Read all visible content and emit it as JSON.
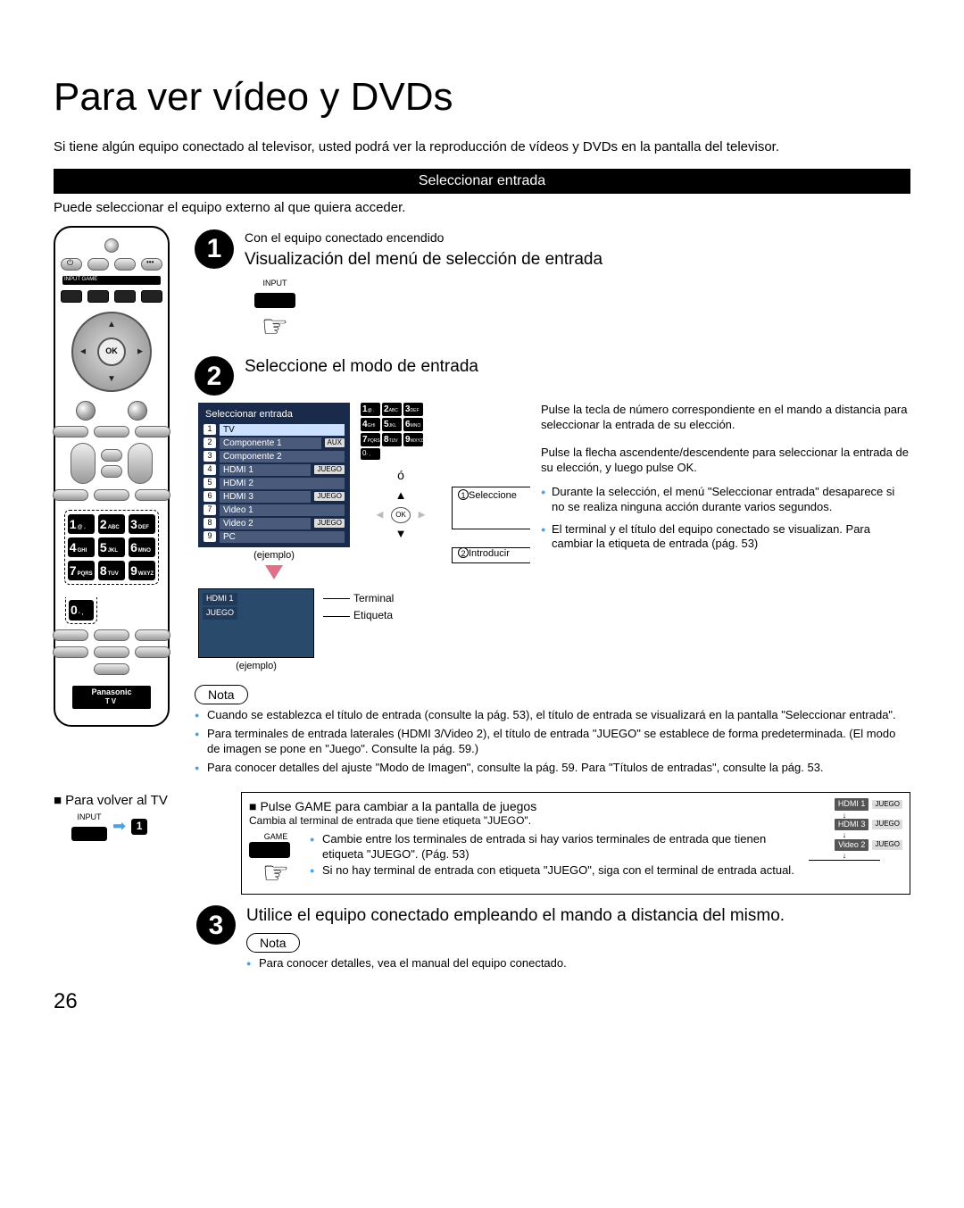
{
  "page_number": "26",
  "title": "Para ver vídeo y DVDs",
  "intro": "Si tiene algún equipo conectado al televisor, usted podrá ver la reproducción de vídeos y DVDs en la pantalla del televisor.",
  "section_header": "Seleccionar entrada",
  "subline": "Puede seleccionar el equipo externo al que quiera acceder.",
  "remote": {
    "ok": "OK",
    "input_game_label": "INPUT  GAME",
    "keys": [
      {
        "n": "1",
        "s": "@ ."
      },
      {
        "n": "2",
        "s": "ABC"
      },
      {
        "n": "3",
        "s": "DEF"
      },
      {
        "n": "4",
        "s": "GHI"
      },
      {
        "n": "5",
        "s": "JKL"
      },
      {
        "n": "6",
        "s": "MNO"
      },
      {
        "n": "7",
        "s": "PQRS"
      },
      {
        "n": "8",
        "s": "TUV"
      },
      {
        "n": "9",
        "s": "WXYZ"
      },
      {
        "n": "0",
        "s": "- ,"
      }
    ],
    "brand": "Panasonic",
    "brand_sub": "TV"
  },
  "step1": {
    "pre": "Con el equipo conectado encendido",
    "title": "Visualización del menú de selección de entrada",
    "btn_label": "INPUT"
  },
  "step2": {
    "title": "Seleccione el modo de entrada",
    "menu_title": "Seleccionar entrada",
    "rows": [
      {
        "n": "1",
        "lbl": "TV",
        "tag": ""
      },
      {
        "n": "2",
        "lbl": "Componente 1",
        "tag": "AUX"
      },
      {
        "n": "3",
        "lbl": "Componente 2",
        "tag": ""
      },
      {
        "n": "4",
        "lbl": "HDMI 1",
        "tag": "JUEGO"
      },
      {
        "n": "5",
        "lbl": "HDMI 2",
        "tag": ""
      },
      {
        "n": "6",
        "lbl": "HDMI 3",
        "tag": "JUEGO"
      },
      {
        "n": "7",
        "lbl": "Video 1",
        "tag": ""
      },
      {
        "n": "8",
        "lbl": "Video 2",
        "tag": "JUEGO"
      },
      {
        "n": "9",
        "lbl": "PC",
        "tag": ""
      }
    ],
    "ejemplo": "(ejemplo)",
    "o_label": "ó",
    "ok": "OK",
    "sel_label": "Seleccione",
    "intro_label": "Introducir",
    "right1": "Pulse la tecla de número correspondiente en el mando a distancia para seleccionar la entrada de su elección.",
    "right2": "Pulse la flecha ascendente/descendente para seleccionar la entrada de su elección, y luego pulse OK.",
    "right3": "Durante la selección, el menú \"Seleccionar entrada\" desaparece si no se realiza ninguna acción durante varios segundos.",
    "right4": "El terminal y el título del equipo conectado se visualizan. Para cambiar la etiqueta de entrada (pág. 53)",
    "screen_label1": "HDMI 1",
    "screen_label2": "JUEGO",
    "terminal": "Terminal",
    "etiqueta": "Etiqueta",
    "ejemplo2": "(ejemplo)",
    "nota_title": "Nota",
    "notes": [
      "Cuando se establezca el título de entrada (consulte la pág. 53), el título de entrada se visualizará en la pantalla \"Seleccionar entrada\".",
      "Para terminales de entrada laterales (HDMI 3/Video 2), el título de entrada \"JUEGO\" se establece de forma predeterminada. (El modo de imagen se pone en \"Juego\". Consulte la pág. 59.)",
      "Para conocer detalles del ajuste \"Modo de Imagen\", consulte la pág. 59. Para \"Títulos de entradas\", consulte la pág. 53."
    ]
  },
  "return_tv": {
    "title": "Para volver al TV",
    "btn": "INPUT",
    "arrow": "➡",
    "step": "1"
  },
  "game": {
    "title": "Pulse GAME para cambiar a la pantalla de juegos",
    "sub": "Cambia al terminal de entrada que tiene etiqueta \"JUEGO\".",
    "btn": "GAME",
    "bullets": [
      "Cambie entre los terminales de entrada si hay varios terminales de entrada que tienen etiqueta \"JUEGO\". (Pág. 53)",
      "Si no hay terminal de entrada con etiqueta \"JUEGO\", siga con el terminal de entrada actual."
    ],
    "flow": [
      {
        "chip": "HDMI 1",
        "tag": "JUEGO"
      },
      {
        "chip": "HDMI 3",
        "tag": "JUEGO"
      },
      {
        "chip": "Video 2",
        "tag": "JUEGO"
      }
    ]
  },
  "step3": {
    "title": "Utilice el equipo conectado empleando el mando a distancia del mismo.",
    "nota_title": "Nota",
    "note": "Para conocer detalles, vea el manual del equipo conectado."
  }
}
